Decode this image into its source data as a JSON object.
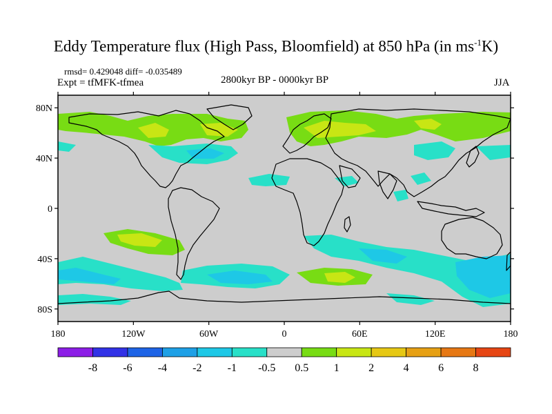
{
  "figure": {
    "title_main": "Eddy Temperature flux (High Pass, Bloomfield) at 850 hPa (in ms",
    "title_sup": "-1",
    "title_end": "K)",
    "stats": "rmsd= 0.429048 diff= -0.035489",
    "experiment": "Expt = tfMFK-tfmea",
    "period": "2800kyr BP - 0000kyr BP",
    "season": "JJA"
  },
  "axes": {
    "y_ticks": [
      {
        "value": 80,
        "label": "80N"
      },
      {
        "value": 40,
        "label": "40N"
      },
      {
        "value": 0,
        "label": "0"
      },
      {
        "value": -40,
        "label": "40S"
      },
      {
        "value": -80,
        "label": "80S"
      }
    ],
    "x_ticks": [
      {
        "value": -180,
        "label": "180"
      },
      {
        "value": -120,
        "label": "120W"
      },
      {
        "value": -60,
        "label": "60W"
      },
      {
        "value": 0,
        "label": "0"
      },
      {
        "value": 60,
        "label": "60E"
      },
      {
        "value": 120,
        "label": "120E"
      },
      {
        "value": 180,
        "label": "180"
      }
    ],
    "lon_range": [
      -180,
      180
    ],
    "lat_range": [
      -90,
      90
    ]
  },
  "colorbar": {
    "colors": [
      "#8c1ee6",
      "#3232e6",
      "#1e64e6",
      "#1ea0e6",
      "#1ec8e6",
      "#28e0c8",
      "#cdcdcd",
      "#78dc14",
      "#c8e614",
      "#e6c814",
      "#e6a014",
      "#e67814",
      "#e64614"
    ],
    "labels": [
      "-8",
      "-6",
      "-4",
      "-2",
      "-1",
      "-0.5",
      "0.5",
      "1",
      "2",
      "4",
      "6",
      "8"
    ]
  },
  "colors": {
    "neutral": "#cdcdcd",
    "cyan": "#28e0c8",
    "lightblue": "#1ec8e6",
    "green": "#78dc14",
    "yellow": "#c8e614",
    "orange": "#e6c814"
  }
}
